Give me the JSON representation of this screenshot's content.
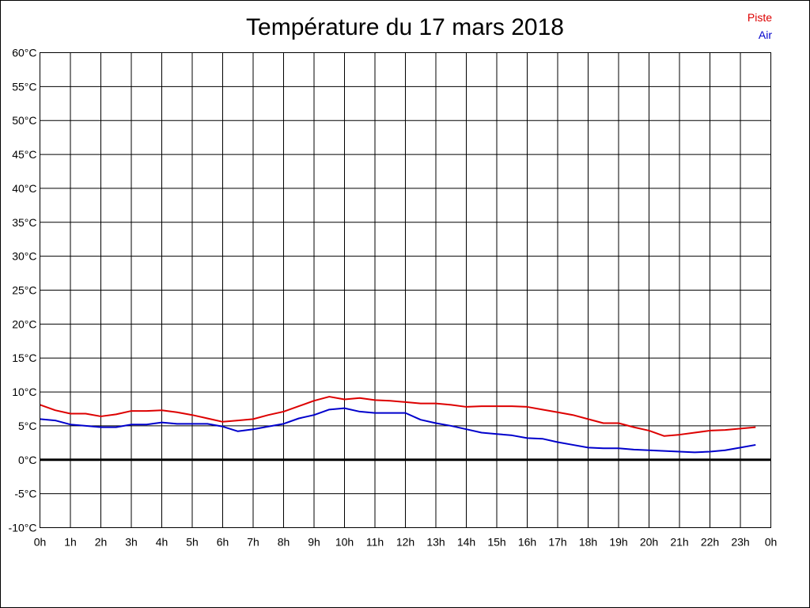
{
  "chart_data": {
    "type": "line",
    "title": "Température du 17 mars 2018",
    "xlabel": "",
    "ylabel": "",
    "ylim": [
      -10,
      60
    ],
    "y_ticks": [
      -10,
      -5,
      0,
      5,
      10,
      15,
      20,
      25,
      30,
      35,
      40,
      45,
      50,
      55,
      60
    ],
    "y_unit": "°C",
    "xlim": [
      0,
      24
    ],
    "x_ticks": [
      0,
      1,
      2,
      3,
      4,
      5,
      6,
      7,
      8,
      9,
      10,
      11,
      12,
      13,
      14,
      15,
      16,
      17,
      18,
      19,
      20,
      21,
      22,
      23,
      24
    ],
    "x_tick_labels": [
      "0h",
      "1h",
      "2h",
      "3h",
      "4h",
      "5h",
      "6h",
      "7h",
      "8h",
      "9h",
      "10h",
      "11h",
      "12h",
      "13h",
      "14h",
      "15h",
      "16h",
      "17h",
      "18h",
      "19h",
      "20h",
      "21h",
      "22h",
      "23h",
      "0h"
    ],
    "grid": true,
    "legend_position": "top-right",
    "zero_line": true,
    "series": [
      {
        "name": "Piste",
        "color": "#dd0000",
        "x": [
          0,
          0.5,
          1,
          1.5,
          2,
          2.5,
          3,
          3.5,
          4,
          4.5,
          5,
          5.5,
          6,
          6.5,
          7,
          7.5,
          8,
          8.5,
          9,
          9.5,
          10,
          10.5,
          11,
          11.5,
          12,
          12.5,
          13,
          13.5,
          14,
          14.5,
          15,
          15.5,
          16,
          16.5,
          17,
          17.5,
          18,
          18.5,
          19,
          19.5,
          20,
          20.5,
          21,
          21.5,
          22,
          22.5,
          23,
          23.5
        ],
        "values": [
          8.1,
          7.3,
          6.8,
          6.8,
          6.4,
          6.7,
          7.2,
          7.2,
          7.3,
          7.0,
          6.6,
          6.1,
          5.6,
          5.8,
          6.0,
          6.6,
          7.1,
          7.9,
          8.7,
          9.3,
          8.9,
          9.1,
          8.8,
          8.7,
          8.5,
          8.3,
          8.3,
          8.1,
          7.8,
          7.9,
          7.9,
          7.9,
          7.8,
          7.4,
          7.0,
          6.6,
          6.0,
          5.4,
          5.4,
          4.8,
          4.3,
          3.5,
          3.7,
          4.0,
          4.3,
          4.4,
          4.6,
          4.8
        ]
      },
      {
        "name": "Air",
        "color": "#0000cc",
        "x": [
          0,
          0.5,
          1,
          1.5,
          2,
          2.5,
          3,
          3.5,
          4,
          4.5,
          5,
          5.5,
          6,
          6.5,
          7,
          7.5,
          8,
          8.5,
          9,
          9.5,
          10,
          10.5,
          11,
          11.5,
          12,
          12.5,
          13,
          13.5,
          14,
          14.5,
          15,
          15.5,
          16,
          16.5,
          17,
          17.5,
          18,
          18.5,
          19,
          19.5,
          20,
          20.5,
          21,
          21.5,
          22,
          22.5,
          23,
          23.5
        ],
        "values": [
          6.0,
          5.8,
          5.2,
          5.0,
          4.8,
          4.8,
          5.2,
          5.2,
          5.5,
          5.3,
          5.3,
          5.3,
          4.9,
          4.2,
          4.5,
          4.9,
          5.3,
          6.1,
          6.6,
          7.4,
          7.6,
          7.1,
          6.9,
          6.9,
          6.9,
          5.9,
          5.4,
          5.0,
          4.5,
          4.0,
          3.8,
          3.6,
          3.2,
          3.1,
          2.6,
          2.2,
          1.8,
          1.7,
          1.7,
          1.5,
          1.4,
          1.3,
          1.2,
          1.1,
          1.2,
          1.4,
          1.8,
          2.2
        ]
      }
    ]
  }
}
